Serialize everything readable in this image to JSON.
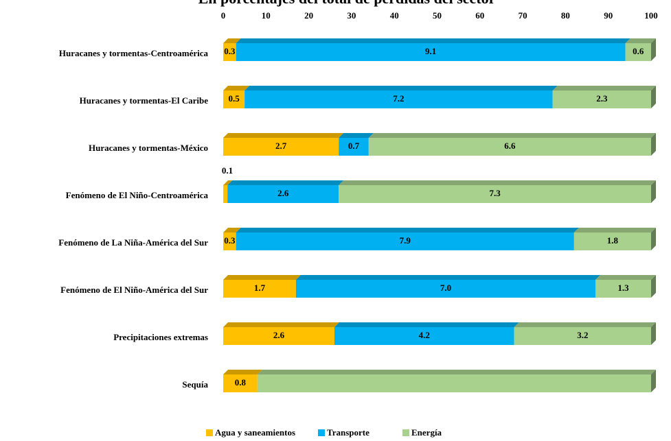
{
  "chart_data": {
    "type": "bar",
    "orientation": "horizontal",
    "stacked": "percent",
    "title": "En porcentajes del total de pérdidas del sector",
    "categories": [
      "Huracanes y tormentas-Centroamérica",
      "Huracanes y tormentas-El Caribe",
      "Huracanes y tormentas-México",
      "Fenómeno de El Niño-Centroamérica",
      "Fenómeno de La Niña-América del Sur",
      "Fenómeno de El Niño-América del Sur",
      "Precipitaciones extremas",
      "Sequía"
    ],
    "series": [
      {
        "name": "Agua y saneamientos",
        "color": "#ffc000",
        "values": [
          0.3,
          0.5,
          2.7,
          0.1,
          0.3,
          1.7,
          2.6,
          0.8
        ],
        "value_labels": [
          "0.3",
          "0.5",
          "2.7",
          "0.1",
          "0.3",
          "1.7",
          "2.6",
          "0.8"
        ]
      },
      {
        "name": "Transporte",
        "color": "#00b0f0",
        "values": [
          9.1,
          7.2,
          0.7,
          2.6,
          7.9,
          7.0,
          4.2,
          0.0
        ],
        "value_labels": [
          "9.1",
          "7.2",
          "0.7",
          "2.6",
          "7.9",
          "7.0",
          "4.2",
          "0.0"
        ]
      },
      {
        "name": "Energía",
        "color": "#a9d18e",
        "values": [
          0.6,
          2.3,
          6.6,
          7.3,
          1.8,
          1.3,
          3.2,
          9.2
        ],
        "value_labels": [
          "0.6",
          "2.3",
          "6.6",
          "7.3",
          "1.8",
          "1.3",
          "3.2",
          null
        ]
      }
    ],
    "xlim": [
      0,
      100
    ],
    "xticks": [
      0,
      10,
      20,
      30,
      40,
      50,
      60,
      70,
      80,
      90,
      100
    ],
    "legend": "bottom"
  }
}
